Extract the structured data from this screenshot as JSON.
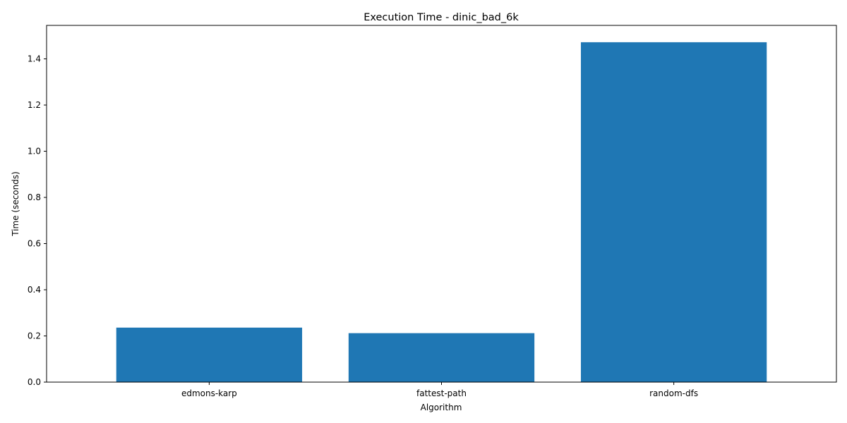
{
  "chart_data": {
    "type": "bar",
    "title": "Execution Time - dinic_bad_6k",
    "xlabel": "Algorithm",
    "ylabel": "Time (seconds)",
    "categories": [
      "edmons-karp",
      "fattest-path",
      "random-dfs"
    ],
    "values": [
      0.236,
      0.212,
      1.472
    ],
    "ylim": [
      0,
      1.545
    ],
    "yticks": [
      "0.0",
      "0.2",
      "0.4",
      "0.6",
      "0.8",
      "1.0",
      "1.2",
      "1.4"
    ],
    "bar_color": "#1f77b4",
    "grid": false
  }
}
